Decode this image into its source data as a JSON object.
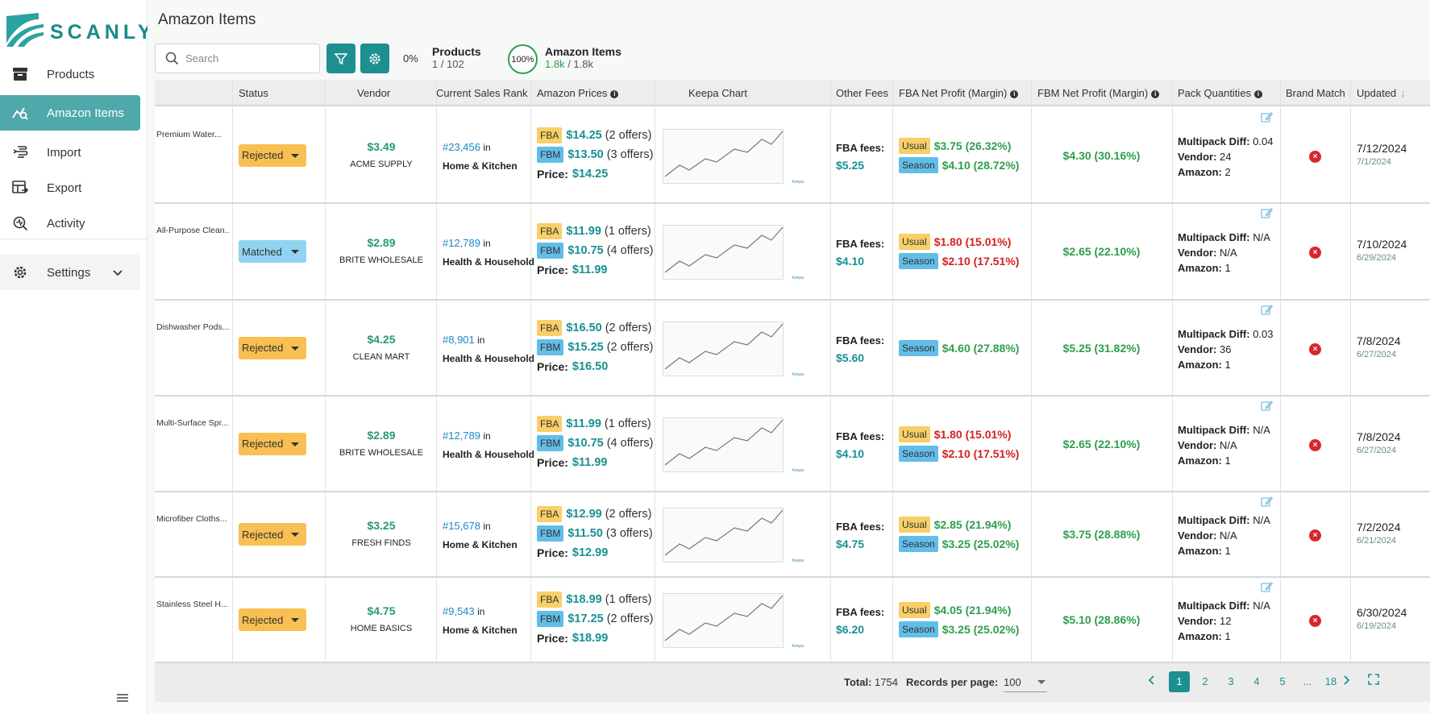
{
  "app": {
    "logo_text": "SCANLY",
    "page_title": "Amazon Items"
  },
  "sidebar": {
    "items": [
      {
        "label": "Products",
        "icon": "archive-box-icon"
      },
      {
        "label": "Amazon Items",
        "icon": "chart-search-icon",
        "active": true
      },
      {
        "label": "Import",
        "icon": "import-icon"
      },
      {
        "label": "Export",
        "icon": "table-export-icon"
      },
      {
        "label": "Activity",
        "icon": "activity-search-icon"
      }
    ],
    "settings_label": "Settings"
  },
  "toolbar": {
    "search_placeholder": "Search",
    "products_pct": "0%",
    "products_title": "Products",
    "products_sub": "1 / 102",
    "items_pct": "100%",
    "items_title": "Amazon Items",
    "items_sub_a": "1.8k",
    "items_sub_b": " / 1.8k"
  },
  "columns": {
    "status": "Status",
    "vendor": "Vendor",
    "rank": "Current Sales Rank",
    "prices": "Amazon Prices",
    "keepa": "Keepa Chart",
    "fees": "Other Fees",
    "fba_profit": "FBA Net Profit (Margin)",
    "fbm_profit": "FBM Net Profit (Margin)",
    "pack": "Pack Quantities",
    "brand": "Brand Match",
    "updated": "Updated"
  },
  "labels": {
    "rank_in": " in",
    "fba": "FBA",
    "fbm": "FBM",
    "price": "Price:",
    "fba_fees": "FBA fees:",
    "usual": "Usual",
    "season": "Season",
    "multipack": "Multipack Diff:",
    "vendor": "Vendor:",
    "amazon": "Amazon:",
    "keepa": "Keepa"
  },
  "rows": [
    {
      "name": "Premium Water...",
      "status": "Rejected",
      "vprice": "$3.49",
      "vendor": "ACME SUPPLY",
      "rank": "#23,456",
      "category": "Home & Kitchen",
      "fba_price": "$14.25",
      "fba_offers": "(2 offers)",
      "fbm_price": "$13.50",
      "fbm_offers": "(3 offers)",
      "price": "$14.25",
      "fees": "$5.25",
      "usual": "$3.75 (26.32%)",
      "season": "$4.10 (28.72%)",
      "fbm_profit": "$4.30 (30.16%)",
      "multipack": "0.04",
      "vendor_qty": "24",
      "amazon_qty": "2",
      "updated": "7/12/2024",
      "created": "7/1/2024"
    },
    {
      "name": "All-Purpose Clean...",
      "status": "Matched",
      "vprice": "$2.89",
      "vendor": "BRITE WHOLESALE",
      "rank": "#12,789",
      "category": "Health & Household",
      "fba_price": "$11.99",
      "fba_offers": "(1 offers)",
      "fbm_price": "$10.75",
      "fbm_offers": "(4 offers)",
      "price": "$11.99",
      "fees": "$4.10",
      "usual": "$1.80 (15.01%)",
      "season": "$2.10 (17.51%)",
      "fbm_profit": "$2.65 (22.10%)",
      "multipack": "N/A",
      "vendor_qty": "N/A",
      "amazon_qty": "1",
      "updated": "7/10/2024",
      "created": "6/29/2024"
    },
    {
      "name": "Dishwasher Pods...",
      "status": "Rejected",
      "vprice": "$4.25",
      "vendor": "CLEAN MART",
      "rank": "#8,901",
      "category": "Health & Household",
      "fba_price": "$16.50",
      "fba_offers": "(2 offers)",
      "fbm_price": "$15.25",
      "fbm_offers": "(2 offers)",
      "price": "$16.50",
      "fees": "$5.60",
      "usual": "",
      "season": "$4.60 (27.88%)",
      "fbm_profit": "$5.25 (31.82%)",
      "multipack": "0.03",
      "vendor_qty": "36",
      "amazon_qty": "1",
      "updated": "7/8/2024",
      "created": "6/27/2024"
    },
    {
      "name": "Multi-Surface Spr...",
      "status": "Rejected",
      "vprice": "$2.89",
      "vendor": "BRITE WHOLESALE",
      "rank": "#12,789",
      "category": "Health & Household",
      "fba_price": "$11.99",
      "fba_offers": "(1 offers)",
      "fbm_price": "$10.75",
      "fbm_offers": "(4 offers)",
      "price": "$11.99",
      "fees": "$4.10",
      "usual": "$1.80 (15.01%)",
      "season": "$2.10 (17.51%)",
      "fbm_profit": "$2.65 (22.10%)",
      "multipack": "N/A",
      "vendor_qty": "N/A",
      "amazon_qty": "1",
      "updated": "7/8/2024",
      "created": "6/27/2024"
    },
    {
      "name": "Microfiber Cloths...",
      "status": "Rejected",
      "vprice": "$3.25",
      "vendor": "FRESH FINDS",
      "rank": "#15,678",
      "category": "Home & Kitchen",
      "fba_price": "$12.99",
      "fba_offers": "(2 offers)",
      "fbm_price": "$11.50",
      "fbm_offers": "(3 offers)",
      "price": "$12.99",
      "fees": "$4.75",
      "usual": "$2.85 (21.94%)",
      "season": "$3.25 (25.02%)",
      "fbm_profit": "$3.75 (28.88%)",
      "multipack": "N/A",
      "vendor_qty": "N/A",
      "amazon_qty": "1",
      "updated": "7/2/2024",
      "created": "6/21/2024"
    },
    {
      "name": "Stainless Steel H...",
      "status": "Rejected",
      "vprice": "$4.75",
      "vendor": "HOME BASICS",
      "rank": "#9,543",
      "category": "Home & Kitchen",
      "fba_price": "$18.99",
      "fba_offers": "(1 offers)",
      "fbm_price": "$17.25",
      "fbm_offers": "(2 offers)",
      "price": "$18.99",
      "fees": "$6.20",
      "usual": "$4.05 (21.94%)",
      "season": "$3.25 (25.02%)",
      "fbm_profit": "$5.10 (28.86%)",
      "multipack": "N/A",
      "vendor_qty": "12",
      "amazon_qty": "1",
      "updated": "6/30/2024",
      "created": "6/19/2024"
    }
  ],
  "profit_colors": [
    {
      "usual": "green",
      "season": "green"
    },
    {
      "usual": "red",
      "season": "red"
    },
    {
      "usual": "green",
      "season": "green"
    },
    {
      "usual": "red",
      "season": "red"
    },
    {
      "usual": "green",
      "season": "green"
    },
    {
      "usual": "green",
      "season": "green"
    }
  ],
  "footer": {
    "total_label": "Total:",
    "total": "1754",
    "rpp_label": "Records per page:",
    "rpp": "100",
    "pages": [
      "1",
      "2",
      "3",
      "4",
      "5",
      "...",
      "18"
    ],
    "current_page": "1"
  },
  "colors": {
    "accent": "#1e8f91",
    "rejected": "#f8bf52",
    "matched": "#8fd3f0",
    "fba_tag": "#f8cf68",
    "fbm_tag": "#62bde8",
    "profit_green": "#2e9e4e",
    "profit_red": "#d32121"
  }
}
